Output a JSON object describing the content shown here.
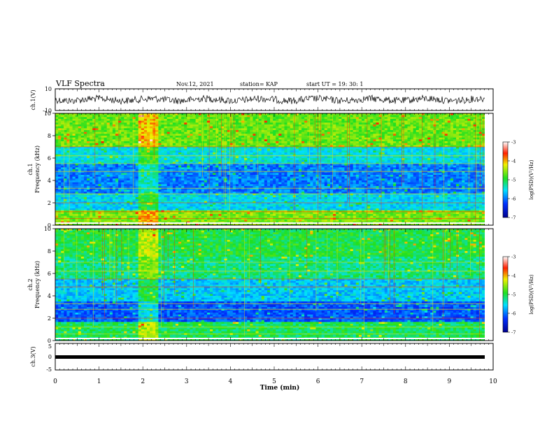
{
  "header": {
    "title": "VLF Spectra",
    "date": "Nov.12, 2021",
    "station": "station= KAP",
    "start": "start  UT =   19: 30: 1"
  },
  "chart_data": [
    {
      "type": "line",
      "name": "ch1-waveform",
      "ylabel": "ch.1(V)",
      "ylim": [
        -10,
        10
      ],
      "yticks": [
        "10",
        "-10"
      ],
      "xlim": [
        0,
        10
      ]
    },
    {
      "type": "heatmap",
      "name": "ch1-spectrogram",
      "ylabel": "ch.1\nFrequency (kHz)",
      "ylim": [
        0,
        10
      ],
      "yticks": [
        "0",
        "2",
        "4",
        "6",
        "8",
        "10"
      ],
      "xlim": [
        0,
        10
      ],
      "colorbar": {
        "label": "log(PSD)(V²/Hz)",
        "range": [
          -7,
          -3
        ],
        "ticks": [
          "-3",
          "-4",
          "-5",
          "-6",
          "-7"
        ]
      }
    },
    {
      "type": "heatmap",
      "name": "ch2-spectrogram",
      "ylabel": "ch.2\nFrequency (kHz)",
      "ylim": [
        0,
        10
      ],
      "yticks": [
        "0",
        "2",
        "4",
        "6",
        "8",
        "10"
      ],
      "xlim": [
        0,
        10
      ],
      "colorbar": {
        "label": "log(PSD)(V²/Hz)",
        "range": [
          -7,
          -3
        ],
        "ticks": [
          "-3",
          "-4",
          "-5",
          "-6",
          "-7"
        ]
      }
    },
    {
      "type": "line",
      "name": "ch3-trace",
      "ylabel": "ch.3(V)",
      "ylim": [
        -5,
        5
      ],
      "yticks": [
        "5",
        "0",
        "-5"
      ],
      "xlim": [
        0,
        10
      ],
      "xlabel": "Time (min)",
      "xticks": [
        "0",
        "1",
        "2",
        "3",
        "4",
        "5",
        "6",
        "7",
        "8",
        "9",
        "10"
      ]
    }
  ]
}
